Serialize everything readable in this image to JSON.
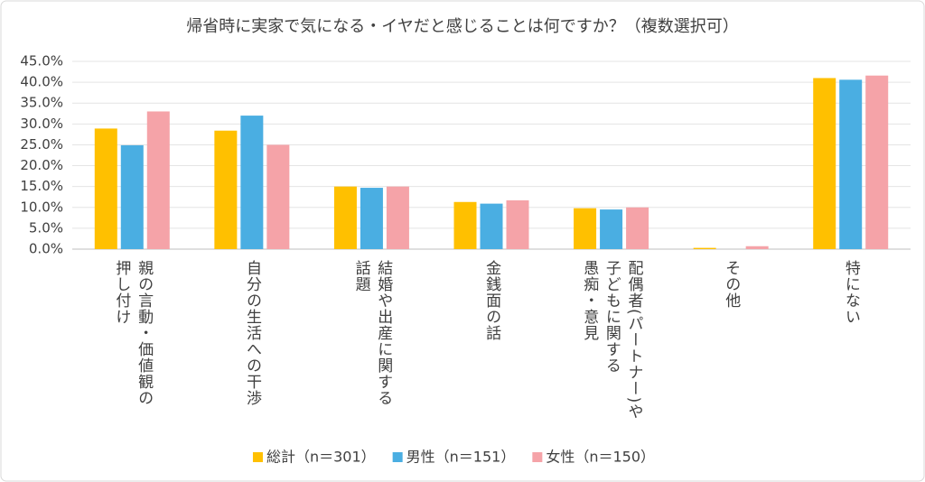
{
  "chart_data": {
    "type": "bar",
    "title": "帰省時に実家で気になる・イヤだと感じることは何ですか？（複数選択可）",
    "categories": [
      "親の言動・価値観の\n押し付け",
      "自分の生活への干渉",
      "結婚や出産に関する\n話題",
      "金銭面の話",
      "配偶者(パートナー)や\n子どもに関する\n愚痴・意見",
      "その他",
      "特にない"
    ],
    "series": [
      {
        "name": "総計（n＝301）",
        "color": "#ffc000",
        "values": [
          28.9,
          28.4,
          15.0,
          11.3,
          9.8,
          0.3,
          41.0
        ]
      },
      {
        "name": "男性（n＝151）",
        "color": "#4aaee2",
        "values": [
          24.9,
          32.0,
          14.7,
          10.9,
          9.5,
          0.0,
          40.6
        ]
      },
      {
        "name": "女性（n＝150）",
        "color": "#f5a3a8",
        "values": [
          33.0,
          25.0,
          15.0,
          11.7,
          10.0,
          0.7,
          41.6
        ]
      }
    ],
    "ylim": [
      0,
      45
    ],
    "yticks": [
      {
        "value": 0,
        "label": "0.0%"
      },
      {
        "value": 5,
        "label": "5.0%"
      },
      {
        "value": 10,
        "label": "10.0%"
      },
      {
        "value": 15,
        "label": "15.0%"
      },
      {
        "value": 20,
        "label": "20.0%"
      },
      {
        "value": 25,
        "label": "25.0%"
      },
      {
        "value": 30,
        "label": "30.0%"
      },
      {
        "value": 35,
        "label": "35.0%"
      },
      {
        "value": 40,
        "label": "40.0%"
      },
      {
        "value": 45,
        "label": "45.0%"
      }
    ],
    "grid": true,
    "legend": "bottom"
  }
}
